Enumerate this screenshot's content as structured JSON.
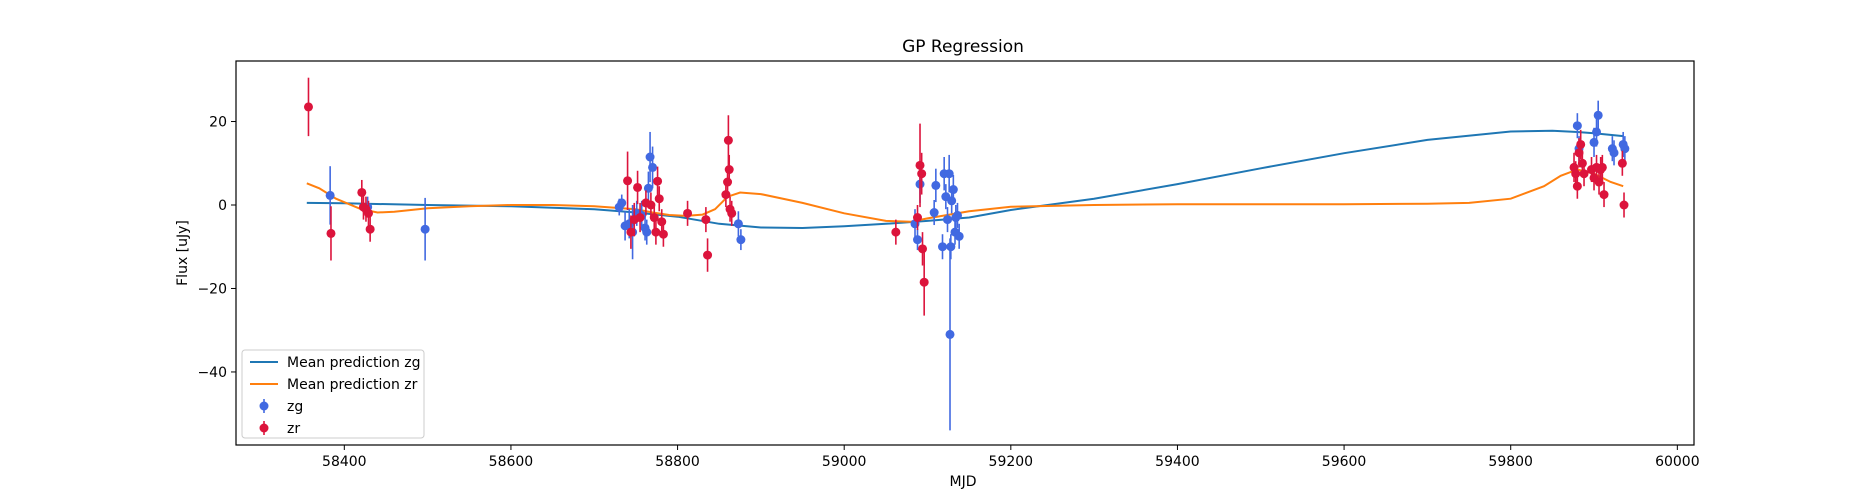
{
  "chart_data": {
    "type": "scatter",
    "title": "GP Regression",
    "xlabel": "MJD",
    "ylabel": "Flux [uJy]",
    "xlim": [
      58270,
      60020
    ],
    "ylim": [
      -57.5,
      34.5
    ],
    "xticks": [
      58400,
      58600,
      58800,
      59000,
      59200,
      59400,
      59600,
      59800,
      60000
    ],
    "yticks": [
      -40,
      -20,
      0,
      20
    ],
    "grid": false,
    "legend_position": "lower-left",
    "lines": [
      {
        "name": "Mean prediction zg",
        "color": "#1f77b4",
        "x": [
          58355,
          58400,
          58500,
          58600,
          58700,
          58750,
          58800,
          58850,
          58900,
          58950,
          59000,
          59050,
          59100,
          59150,
          59200,
          59300,
          59400,
          59500,
          59600,
          59700,
          59800,
          59850,
          59880,
          59900,
          59935
        ],
        "y": [
          0.5,
          0.4,
          0.0,
          -0.3,
          -1.0,
          -1.8,
          -2.8,
          -4.5,
          -5.4,
          -5.5,
          -5.1,
          -4.5,
          -3.8,
          -3.0,
          -1.2,
          1.5,
          5.0,
          8.8,
          12.4,
          15.6,
          17.6,
          17.8,
          17.5,
          17.2,
          16.5
        ]
      },
      {
        "name": "Mean prediction zr",
        "color": "#ff7f0e",
        "x": [
          58355,
          58370,
          58390,
          58420,
          58440,
          58460,
          58500,
          58550,
          58600,
          58650,
          58700,
          58750,
          58770,
          58790,
          58810,
          58830,
          58845,
          58860,
          58875,
          58900,
          58950,
          59000,
          59050,
          59080,
          59100,
          59150,
          59200,
          59300,
          59400,
          59500,
          59600,
          59700,
          59750,
          59800,
          59840,
          59860,
          59880,
          59900,
          59920,
          59935
        ],
        "y": [
          5.2,
          4.0,
          1.5,
          -1.0,
          -1.8,
          -1.6,
          -0.8,
          -0.3,
          0.0,
          0.0,
          -0.3,
          -1.0,
          -1.8,
          -2.4,
          -2.6,
          -2.3,
          -1.0,
          2.0,
          3.0,
          2.6,
          0.5,
          -2.0,
          -3.8,
          -4.0,
          -3.2,
          -1.5,
          -0.4,
          0.0,
          0.2,
          0.2,
          0.2,
          0.3,
          0.5,
          1.5,
          4.5,
          7.0,
          8.5,
          7.5,
          5.5,
          4.5
        ]
      }
    ],
    "series": [
      {
        "name": "zg",
        "color": "#4169e1",
        "points": [
          {
            "x": 58383,
            "y": 2.3,
            "yerr": 7.0
          },
          {
            "x": 58428,
            "y": -0.5,
            "yerr": 2.5
          },
          {
            "x": 58497,
            "y": -5.8,
            "yerr": 7.5
          },
          {
            "x": 58730,
            "y": -0.5,
            "yerr": 2.0
          },
          {
            "x": 58733,
            "y": 0.5,
            "yerr": 2.0
          },
          {
            "x": 58737,
            "y": -5.0,
            "yerr": 3.5
          },
          {
            "x": 58742,
            "y": -4.5,
            "yerr": 3.5
          },
          {
            "x": 58746,
            "y": -6.5,
            "yerr": 6.5
          },
          {
            "x": 58751,
            "y": -2.0,
            "yerr": 3.0
          },
          {
            "x": 58757,
            "y": -2.5,
            "yerr": 3.5
          },
          {
            "x": 58761,
            "y": -5.5,
            "yerr": 3.0
          },
          {
            "x": 58763,
            "y": -6.5,
            "yerr": 3.0
          },
          {
            "x": 58765,
            "y": 4.0,
            "yerr": 4.0
          },
          {
            "x": 58767,
            "y": 11.5,
            "yerr": 6.0
          },
          {
            "x": 58770,
            "y": 9.0,
            "yerr": 5.0
          },
          {
            "x": 58873,
            "y": -4.5,
            "yerr": 3.0
          },
          {
            "x": 58876,
            "y": -8.3,
            "yerr": 2.5
          },
          {
            "x": 59085,
            "y": -4.5,
            "yerr": 3.5
          },
          {
            "x": 59088,
            "y": -8.3,
            "yerr": 2.5
          },
          {
            "x": 59091,
            "y": 5.0,
            "yerr": 4.5
          },
          {
            "x": 59108,
            "y": -1.8,
            "yerr": 3.0
          },
          {
            "x": 59110,
            "y": 4.7,
            "yerr": 4.0
          },
          {
            "x": 59118,
            "y": -10.0,
            "yerr": 3.0
          },
          {
            "x": 59120,
            "y": 7.5,
            "yerr": 4.0
          },
          {
            "x": 59122,
            "y": 2.0,
            "yerr": 3.0
          },
          {
            "x": 59124,
            "y": -3.5,
            "yerr": 3.0
          },
          {
            "x": 59126,
            "y": 7.5,
            "yerr": 4.5
          },
          {
            "x": 59127,
            "y": -31.0,
            "yerr": 23.0
          },
          {
            "x": 59128,
            "y": -10.0,
            "yerr": 3.0
          },
          {
            "x": 59129,
            "y": 1.0,
            "yerr": 3.0
          },
          {
            "x": 59131,
            "y": 3.7,
            "yerr": 3.5
          },
          {
            "x": 59133,
            "y": -6.5,
            "yerr": 3.0
          },
          {
            "x": 59134,
            "y": -3.0,
            "yerr": 3.0
          },
          {
            "x": 59136,
            "y": -2.5,
            "yerr": 3.0
          },
          {
            "x": 59138,
            "y": -7.5,
            "yerr": 3.0
          },
          {
            "x": 59880,
            "y": 19.0,
            "yerr": 3.0
          },
          {
            "x": 59882,
            "y": 13.5,
            "yerr": 3.0
          },
          {
            "x": 59900,
            "y": 15.0,
            "yerr": 3.5
          },
          {
            "x": 59903,
            "y": 17.5,
            "yerr": 3.5
          },
          {
            "x": 59905,
            "y": 21.5,
            "yerr": 3.5
          },
          {
            "x": 59922,
            "y": 13.5,
            "yerr": 3.0
          },
          {
            "x": 59924,
            "y": 12.5,
            "yerr": 3.0
          },
          {
            "x": 59935,
            "y": 14.5,
            "yerr": 3.0
          },
          {
            "x": 59937,
            "y": 13.5,
            "yerr": 3.0
          }
        ]
      },
      {
        "name": "zr",
        "color": "#dc143c",
        "points": [
          {
            "x": 58357,
            "y": 23.5,
            "yerr": 7.0
          },
          {
            "x": 58384,
            "y": -6.8,
            "yerr": 6.5
          },
          {
            "x": 58421,
            "y": 3.0,
            "yerr": 3.0
          },
          {
            "x": 58423,
            "y": -0.5,
            "yerr": 3.0
          },
          {
            "x": 58426,
            "y": -1.0,
            "yerr": 3.0
          },
          {
            "x": 58429,
            "y": -2.0,
            "yerr": 3.0
          },
          {
            "x": 58431,
            "y": -5.8,
            "yerr": 3.0
          },
          {
            "x": 58740,
            "y": 5.8,
            "yerr": 7.0
          },
          {
            "x": 58744,
            "y": -6.5,
            "yerr": 4.0
          },
          {
            "x": 58748,
            "y": -3.5,
            "yerr": 4.0
          },
          {
            "x": 58752,
            "y": 4.2,
            "yerr": 4.0
          },
          {
            "x": 58755,
            "y": -3.0,
            "yerr": 3.5
          },
          {
            "x": 58762,
            "y": 0.5,
            "yerr": 3.0
          },
          {
            "x": 58768,
            "y": 0.0,
            "yerr": 3.0
          },
          {
            "x": 58772,
            "y": -3.0,
            "yerr": 3.0
          },
          {
            "x": 58774,
            "y": -6.5,
            "yerr": 3.0
          },
          {
            "x": 58776,
            "y": 5.7,
            "yerr": 3.5
          },
          {
            "x": 58778,
            "y": 1.5,
            "yerr": 3.0
          },
          {
            "x": 58781,
            "y": -4.0,
            "yerr": 3.0
          },
          {
            "x": 58783,
            "y": -7.0,
            "yerr": 3.0
          },
          {
            "x": 58812,
            "y": -2.0,
            "yerr": 3.0
          },
          {
            "x": 58834,
            "y": -3.5,
            "yerr": 3.0
          },
          {
            "x": 58836,
            "y": -12.0,
            "yerr": 4.0
          },
          {
            "x": 58858,
            "y": 2.5,
            "yerr": 3.0
          },
          {
            "x": 58860,
            "y": 5.5,
            "yerr": 3.5
          },
          {
            "x": 58861,
            "y": 15.5,
            "yerr": 6.0
          },
          {
            "x": 58862,
            "y": 8.5,
            "yerr": 3.5
          },
          {
            "x": 58863,
            "y": -1.0,
            "yerr": 3.0
          },
          {
            "x": 58865,
            "y": -2.0,
            "yerr": 3.0
          },
          {
            "x": 59062,
            "y": -6.5,
            "yerr": 3.0
          },
          {
            "x": 59088,
            "y": -3.0,
            "yerr": 3.0
          },
          {
            "x": 59091,
            "y": 9.5,
            "yerr": 10.0
          },
          {
            "x": 59093,
            "y": 7.5,
            "yerr": 5.0
          },
          {
            "x": 59094,
            "y": -10.5,
            "yerr": 4.0
          },
          {
            "x": 59096,
            "y": -18.5,
            "yerr": 8.0
          },
          {
            "x": 59876,
            "y": 9.0,
            "yerr": 3.5
          },
          {
            "x": 59878,
            "y": 7.5,
            "yerr": 3.0
          },
          {
            "x": 59880,
            "y": 4.5,
            "yerr": 3.0
          },
          {
            "x": 59882,
            "y": 12.5,
            "yerr": 3.5
          },
          {
            "x": 59884,
            "y": 14.5,
            "yerr": 3.5
          },
          {
            "x": 59886,
            "y": 10.0,
            "yerr": 3.0
          },
          {
            "x": 59888,
            "y": 7.5,
            "yerr": 3.0
          },
          {
            "x": 59897,
            "y": 8.5,
            "yerr": 3.0
          },
          {
            "x": 59900,
            "y": 6.5,
            "yerr": 3.0
          },
          {
            "x": 59903,
            "y": 9.0,
            "yerr": 3.0
          },
          {
            "x": 59906,
            "y": 5.5,
            "yerr": 3.0
          },
          {
            "x": 59908,
            "y": 8.5,
            "yerr": 3.0
          },
          {
            "x": 59910,
            "y": 9.0,
            "yerr": 3.0
          },
          {
            "x": 59912,
            "y": 2.5,
            "yerr": 3.0
          },
          {
            "x": 59934,
            "y": 10.0,
            "yerr": 3.0
          },
          {
            "x": 59936,
            "y": 0.0,
            "yerr": 3.0
          }
        ]
      }
    ]
  }
}
